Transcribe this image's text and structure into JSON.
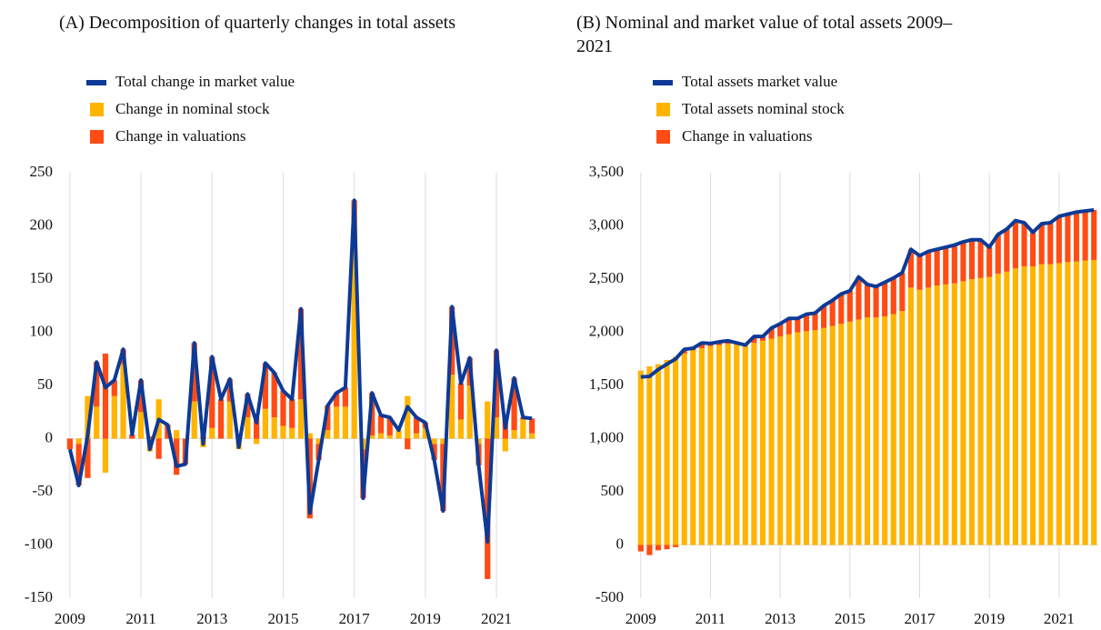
{
  "chart_data": [
    {
      "type": "bar",
      "title": "(A) Decomposition of quarterly changes in total assets",
      "categories": [
        "2009",
        null,
        null,
        null,
        null,
        null,
        null,
        null,
        "2011",
        null,
        null,
        null,
        null,
        null,
        null,
        null,
        "2013",
        null,
        null,
        null,
        null,
        null,
        null,
        null,
        "2015",
        null,
        null,
        null,
        null,
        null,
        null,
        null,
        "2017",
        null,
        null,
        null,
        null,
        null,
        null,
        null,
        "2019",
        null,
        null,
        null,
        null,
        null,
        null,
        null,
        "2021",
        null,
        null,
        null,
        null
      ],
      "series": [
        {
          "name": "Total change in market value",
          "type": "line",
          "color": "#0d3a96",
          "values": [
            -10,
            -44,
            3,
            72,
            48,
            55,
            84,
            4,
            55,
            -10,
            18,
            13,
            -26,
            -24,
            90,
            -5,
            77,
            37,
            56,
            -8,
            42,
            15,
            71,
            62,
            45,
            37,
            122,
            -70,
            -20,
            31,
            43,
            48,
            224,
            -56,
            43,
            22,
            20,
            8,
            30,
            20,
            15,
            -20,
            -68,
            124,
            52,
            76,
            -25,
            -97,
            83,
            10,
            57,
            20,
            19
          ]
        },
        {
          "name": "Change in nominal stock",
          "type": "bar",
          "color": "#ffb400",
          "values": [
            0,
            -5,
            40,
            30,
            -32,
            40,
            70,
            0,
            25,
            -12,
            37,
            0,
            8,
            0,
            35,
            -8,
            10,
            0,
            35,
            -10,
            20,
            -5,
            28,
            20,
            12,
            10,
            37,
            5,
            -5,
            8,
            30,
            30,
            180,
            -10,
            3,
            5,
            3,
            8,
            40,
            5,
            10,
            -5,
            -5,
            60,
            18,
            50,
            -5,
            35,
            20,
            -12,
            8,
            18,
            5
          ]
        },
        {
          "name": "Change in valuations",
          "type": "bar",
          "color": "#ff4b14",
          "values": [
            -10,
            -39,
            -37,
            42,
            80,
            15,
            14,
            4,
            30,
            2,
            -19,
            13,
            -34,
            -24,
            55,
            3,
            67,
            37,
            21,
            2,
            22,
            20,
            43,
            42,
            33,
            27,
            85,
            -75,
            -15,
            23,
            13,
            18,
            44,
            -46,
            40,
            17,
            17,
            0,
            -10,
            15,
            5,
            -15,
            -63,
            64,
            34,
            26,
            -20,
            -132,
            63,
            22,
            49,
            2,
            14
          ]
        }
      ],
      "ylim": [
        -150,
        250
      ],
      "yticks": [
        -150,
        -100,
        -50,
        0,
        50,
        100,
        150,
        200,
        250
      ],
      "grid": "x"
    },
    {
      "type": "bar",
      "title": "(B) Nominal and market value of total assets 2009–2021",
      "categories": [
        "2009",
        null,
        null,
        null,
        null,
        null,
        null,
        null,
        "2011",
        null,
        null,
        null,
        null,
        null,
        null,
        null,
        "2013",
        null,
        null,
        null,
        null,
        null,
        null,
        null,
        "2015",
        null,
        null,
        null,
        null,
        null,
        null,
        null,
        "2017",
        null,
        null,
        null,
        null,
        null,
        null,
        null,
        "2019",
        null,
        null,
        null,
        null,
        null,
        null,
        null,
        "2021",
        null,
        null,
        null,
        null
      ],
      "series": [
        {
          "name": "Total assets market value",
          "type": "line",
          "color": "#0d3a96",
          "values": [
            1580,
            1585,
            1650,
            1700,
            1750,
            1840,
            1850,
            1900,
            1895,
            1910,
            1920,
            1900,
            1880,
            1960,
            1960,
            2040,
            2080,
            2130,
            2130,
            2170,
            2180,
            2250,
            2300,
            2360,
            2390,
            2520,
            2450,
            2430,
            2470,
            2510,
            2560,
            2780,
            2720,
            2760,
            2780,
            2800,
            2820,
            2850,
            2870,
            2870,
            2800,
            2920,
            2970,
            3050,
            3030,
            2940,
            3020,
            3030,
            3090,
            3110,
            3130,
            3140,
            3150
          ]
        },
        {
          "name": "Total assets nominal stock",
          "type": "bar",
          "color": "#ffb400",
          "values": [
            1640,
            1680,
            1700,
            1740,
            1770,
            1800,
            1830,
            1850,
            1870,
            1880,
            1890,
            1890,
            1880,
            1900,
            1920,
            1940,
            1960,
            1980,
            2000,
            2010,
            2020,
            2040,
            2060,
            2080,
            2100,
            2120,
            2140,
            2140,
            2150,
            2170,
            2200,
            2420,
            2400,
            2420,
            2440,
            2450,
            2460,
            2480,
            2500,
            2510,
            2520,
            2550,
            2570,
            2600,
            2620,
            2620,
            2640,
            2640,
            2650,
            2660,
            2665,
            2675,
            2680
          ]
        },
        {
          "name": "Change in valuations",
          "type": "bar",
          "color": "#ff4b14",
          "values": [
            -60,
            -95,
            -50,
            -40,
            -20,
            40,
            20,
            50,
            25,
            30,
            30,
            10,
            0,
            60,
            40,
            100,
            120,
            150,
            130,
            160,
            160,
            210,
            240,
            280,
            290,
            400,
            310,
            290,
            320,
            340,
            360,
            360,
            320,
            340,
            340,
            350,
            360,
            370,
            370,
            360,
            280,
            370,
            400,
            450,
            410,
            320,
            380,
            390,
            440,
            450,
            465,
            465,
            470
          ]
        }
      ],
      "ylim": [
        -500,
        3500
      ],
      "yticks": [
        {
          "value": -500,
          "label": "-500"
        },
        0,
        500,
        {
          "value": 1000,
          "label": "1,000"
        },
        {
          "value": 1500,
          "label": "1,500"
        },
        {
          "value": 2000,
          "label": "2,000"
        },
        {
          "value": 2500,
          "label": "2,500"
        },
        {
          "value": 3000,
          "label": "3,000"
        },
        {
          "value": 3500,
          "label": "3,500"
        }
      ],
      "grid": "x"
    }
  ]
}
